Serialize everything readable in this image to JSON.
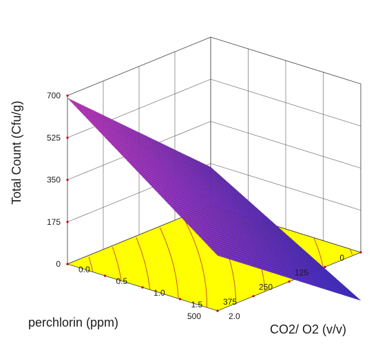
{
  "chart_data": {
    "type": "surface",
    "zlabel": "Total Count (Cfu/g)",
    "xlabel": "perchlorin (ppm)",
    "ylabel": "CO2/ O2 (v/v)",
    "x_ticks": [
      "0",
      "125",
      "250",
      "375",
      "500"
    ],
    "y_ticks": [
      "0.0",
      "0.5",
      "1.0",
      "1.5",
      "2.0"
    ],
    "z_ticks": [
      "0",
      "175",
      "350",
      "525",
      "700"
    ],
    "xlim": [
      0,
      500
    ],
    "ylim": [
      0,
      2.0
    ],
    "zlim": [
      0,
      700
    ],
    "surface_corners": [
      {
        "perchlorin": 0,
        "co2_o2": 0.0,
        "total_count": 160
      },
      {
        "perchlorin": 500,
        "co2_o2": 0.0,
        "total_count": 690
      },
      {
        "perchlorin": 500,
        "co2_o2": 2.0,
        "total_count": 230
      },
      {
        "perchlorin": 0,
        "co2_o2": 2.0,
        "total_count": -200
      }
    ],
    "colors": {
      "surface_high": "#e23cd6",
      "surface_low": "#3c2ce0",
      "floor": "#ffff00",
      "floor_contour": "#c44040",
      "tick_dot": "#cc0000"
    }
  }
}
